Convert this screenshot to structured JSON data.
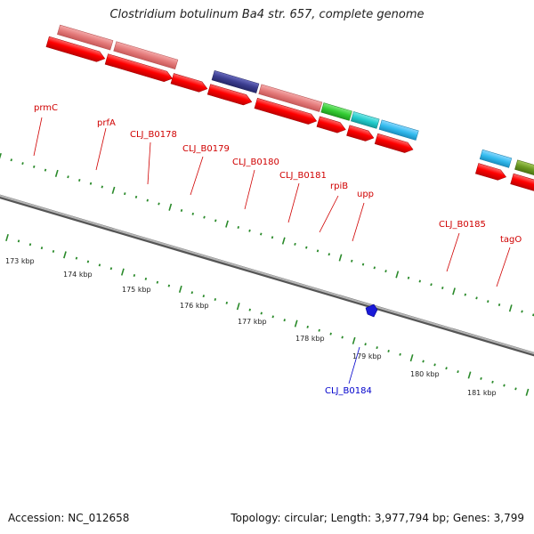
{
  "title": "Clostridium botulinum Ba4 str. 657, complete genome",
  "footer": {
    "accession": "Accession: NC_012658",
    "summary": "Topology: circular; Length: 3,977,794 bp; Genes: 3,799"
  },
  "scale": {
    "unit": "kbp",
    "ticks": [
      "173 kbp",
      "174 kbp",
      "175 kbp",
      "176 kbp",
      "177 kbp",
      "178 kbp",
      "179 kbp",
      "180 kbp",
      "181 kbp"
    ]
  },
  "genes": [
    {
      "label": "prmC",
      "color": "#e06060"
    },
    {
      "label": "prfA",
      "color": "#e06060"
    },
    {
      "label": "CLJ_B0178",
      "color": "#e06060"
    },
    {
      "label": "CLJ_B0179",
      "color": "#e06060"
    },
    {
      "label": "CLJ_B0180",
      "color": "#e06060"
    },
    {
      "label": "CLJ_B0181",
      "color": "#e06060"
    },
    {
      "label": "rpiB",
      "color": "#e06060"
    },
    {
      "label": "upp",
      "color": "#e06060"
    },
    {
      "label": "CLJ_B0185",
      "color": "#e06060"
    },
    {
      "label": "tagO",
      "color": "#e06060"
    },
    {
      "label": "CLJ_B0184",
      "color": "#0000cc"
    }
  ],
  "colors": {
    "label_red": "#d00000",
    "label_blue": "#0000cc",
    "cds_red": "#ff0000",
    "salmon": "#e88080",
    "navy": "#3b3d8f",
    "green": "#33cc33",
    "teal": "#22cccc",
    "sky": "#33bbee",
    "olive": "#6b9a22",
    "ticks": "#2a8a2a",
    "backbone": "#8a8a8a"
  }
}
